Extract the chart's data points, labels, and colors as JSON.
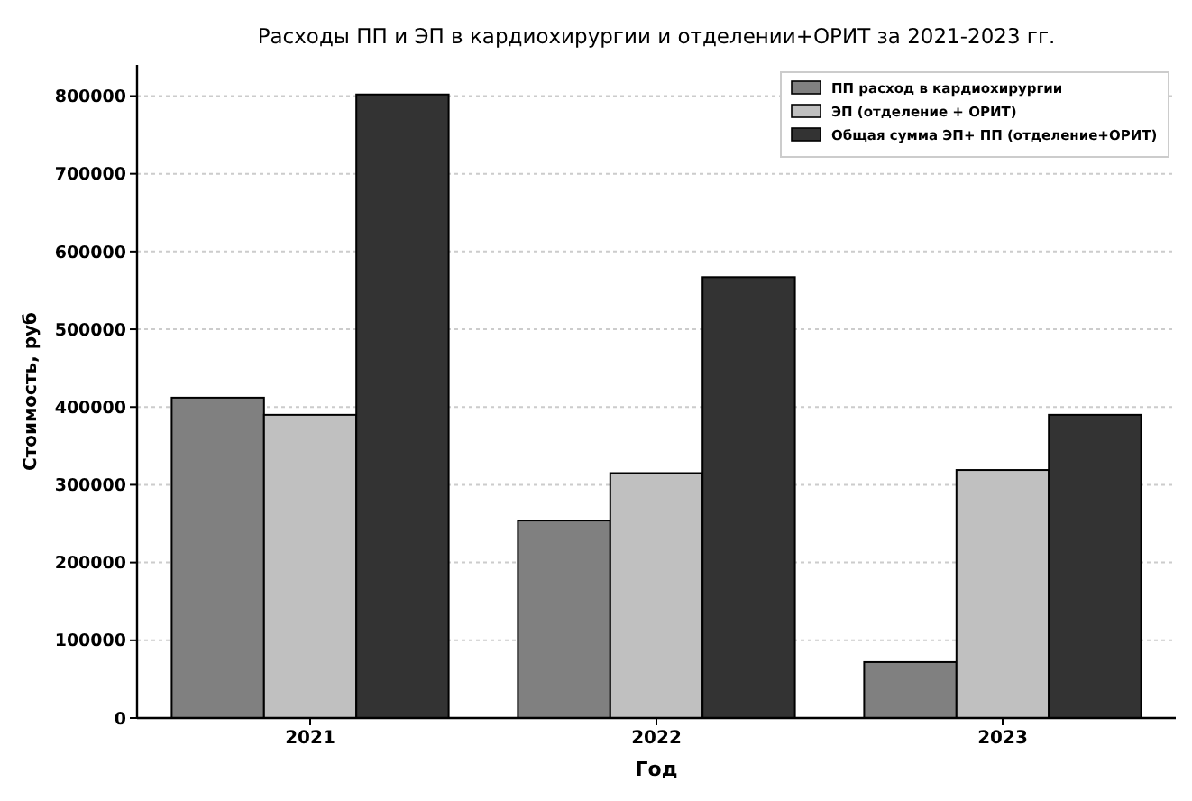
{
  "chart_data": {
    "type": "bar",
    "title": "Расходы ПП и ЭП в кардиохирургии и отделении+ОРИТ за 2021-2023 гг.",
    "xlabel": "Год",
    "ylabel": "Стоимость, руб",
    "categories": [
      "2021",
      "2022",
      "2023"
    ],
    "series": [
      {
        "name": "ПП расход в кардиохирургии",
        "color": "#808080",
        "values": [
          412000,
          254000,
          72000
        ]
      },
      {
        "name": "ЭП (отделение + ОРИТ)",
        "color": "#c0c0c0",
        "values": [
          390000,
          315000,
          319000
        ]
      },
      {
        "name": "Общая сумма ЭП+ ПП (отделение+ОРИТ)",
        "color": "#333333",
        "values": [
          802000,
          567000,
          390000
        ]
      }
    ],
    "ylim": [
      0,
      840000
    ],
    "yticks": [
      0,
      100000,
      200000,
      300000,
      400000,
      500000,
      600000,
      700000,
      800000
    ],
    "grid": "y",
    "legend": "top right"
  }
}
